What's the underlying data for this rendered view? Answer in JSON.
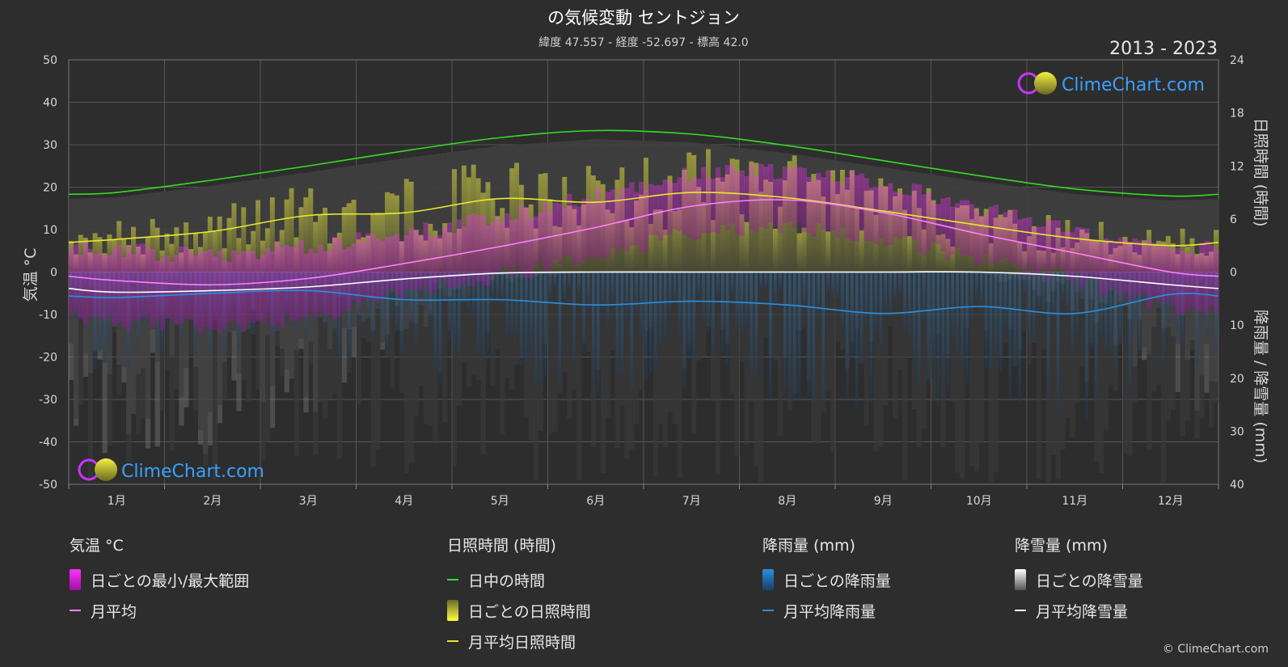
{
  "title": "の気候変動 セントジョン",
  "subtitle": "緯度 47.557 - 経度 -52.697 - 標高 42.0",
  "year_range": "2013 - 2023",
  "brand": "ClimeChart.com",
  "copyright": "© ClimeChart.com",
  "colors": {
    "background": "#2d2d2d",
    "daylight": "#33dd22",
    "sunshine_avg": "#e8e830",
    "sunshine_daily": "#c8c83a",
    "temp_range": "#e020e0",
    "temp_avg": "#ff80ff",
    "rain": "#2a8fe0",
    "snow_avg": "#ffffff",
    "snow_daily": "#8a8a8a"
  },
  "legend": {
    "temperature": {
      "header": "気温 °C",
      "range": "日ごとの最小/最大範囲",
      "avg": "月平均"
    },
    "sunshine": {
      "header": "日照時間 (時間)",
      "daylight": "日中の時間",
      "daily": "日ごとの日照時間",
      "avg": "月平均日照時間"
    },
    "rain": {
      "header": "降雨量 (mm)",
      "daily": "日ごとの降雨量",
      "avg": "月平均降雨量"
    },
    "snow": {
      "header": "降雪量 (mm)",
      "daily": "日ごとの降雪量",
      "avg": "月平均降雪量"
    }
  },
  "chart_data": {
    "type": "line",
    "categories": [
      "1月",
      "2月",
      "3月",
      "4月",
      "5月",
      "6月",
      "7月",
      "8月",
      "9月",
      "10月",
      "11月",
      "12月"
    ],
    "y_left": {
      "label": "気温 °C",
      "range": [
        -50,
        50
      ],
      "ticks": [
        50,
        40,
        30,
        20,
        10,
        0,
        -10,
        -20,
        -30,
        -40,
        -50
      ]
    },
    "y_right_top": {
      "label": "日照時間 (時間)",
      "range": [
        0,
        24
      ],
      "ticks": [
        24,
        18,
        12,
        6,
        0
      ]
    },
    "y_right_bottom": {
      "label": "降雨量 / 降雪量 (mm)",
      "range": [
        0,
        40
      ],
      "ticks": [
        10,
        20,
        30,
        40
      ]
    },
    "grid": true,
    "series": [
      {
        "name": "日中の時間",
        "axis": "sunshine_hours",
        "values": [
          9.0,
          10.4,
          12.0,
          13.7,
          15.2,
          16.0,
          15.6,
          14.3,
          12.6,
          10.9,
          9.4,
          8.6
        ]
      },
      {
        "name": "月平均日照時間",
        "axis": "sunshine_hours",
        "values": [
          3.7,
          4.6,
          6.4,
          6.7,
          8.3,
          7.9,
          9.0,
          8.4,
          6.9,
          5.3,
          3.8,
          3.0
        ]
      },
      {
        "name": "月平均",
        "axis": "temperature_c",
        "values": [
          -2.0,
          -3.0,
          -1.5,
          2.0,
          6.0,
          10.5,
          15.5,
          17.0,
          14.0,
          9.0,
          4.5,
          0.0
        ]
      },
      {
        "name": "月平均降雪量",
        "axis": "precip_mm",
        "values": [
          3.8,
          3.5,
          2.8,
          1.3,
          0.2,
          0.0,
          0.0,
          0.0,
          0.0,
          0.0,
          0.8,
          2.4
        ]
      },
      {
        "name": "月平均降雨量",
        "axis": "precip_mm",
        "values": [
          4.8,
          4.0,
          3.5,
          5.2,
          5.2,
          6.2,
          5.5,
          6.2,
          7.8,
          6.5,
          7.8,
          4.2
        ]
      }
    ],
    "daily_temp_range_c": {
      "min": [
        -10,
        -11,
        -9,
        -3,
        1,
        6,
        11,
        13,
        10,
        5,
        0,
        -6
      ],
      "max": [
        3,
        2,
        4,
        7,
        11,
        16,
        21,
        22,
        19,
        13,
        8,
        4
      ]
    }
  }
}
